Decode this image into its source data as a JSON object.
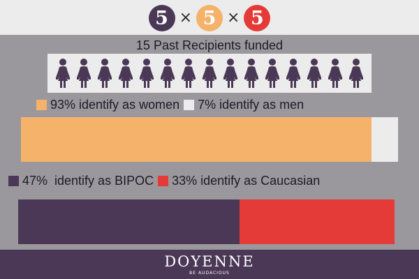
{
  "header": {
    "badges": [
      {
        "label": "5",
        "color": "#4a3856"
      },
      {
        "label": "5",
        "color": "#f4b26b"
      },
      {
        "label": "5",
        "color": "#e53b38"
      }
    ],
    "times_symbol": "×"
  },
  "caption": "15 Past Recipients funded",
  "icons": {
    "person_icon": "person-icon",
    "count": 15,
    "color": "#4a3856"
  },
  "chart_data": [
    {
      "type": "bar",
      "orientation": "horizontal",
      "stacked": true,
      "series": [
        {
          "name": "93% identify as women",
          "value": 93,
          "color": "#f4b26b"
        },
        {
          "name": "7% identify as men",
          "value": 7,
          "color": "#ececec"
        }
      ]
    },
    {
      "type": "bar",
      "orientation": "horizontal",
      "stacked": true,
      "series": [
        {
          "name": "47%  identify as BIPOC",
          "value": 47,
          "color": "#4a3856"
        },
        {
          "name": "33% identify as Caucasian",
          "value": 33,
          "color": "#e53b38"
        }
      ]
    }
  ],
  "footer": {
    "brand": "DOYENNE",
    "tagline": "BE AUDACIOUS"
  }
}
